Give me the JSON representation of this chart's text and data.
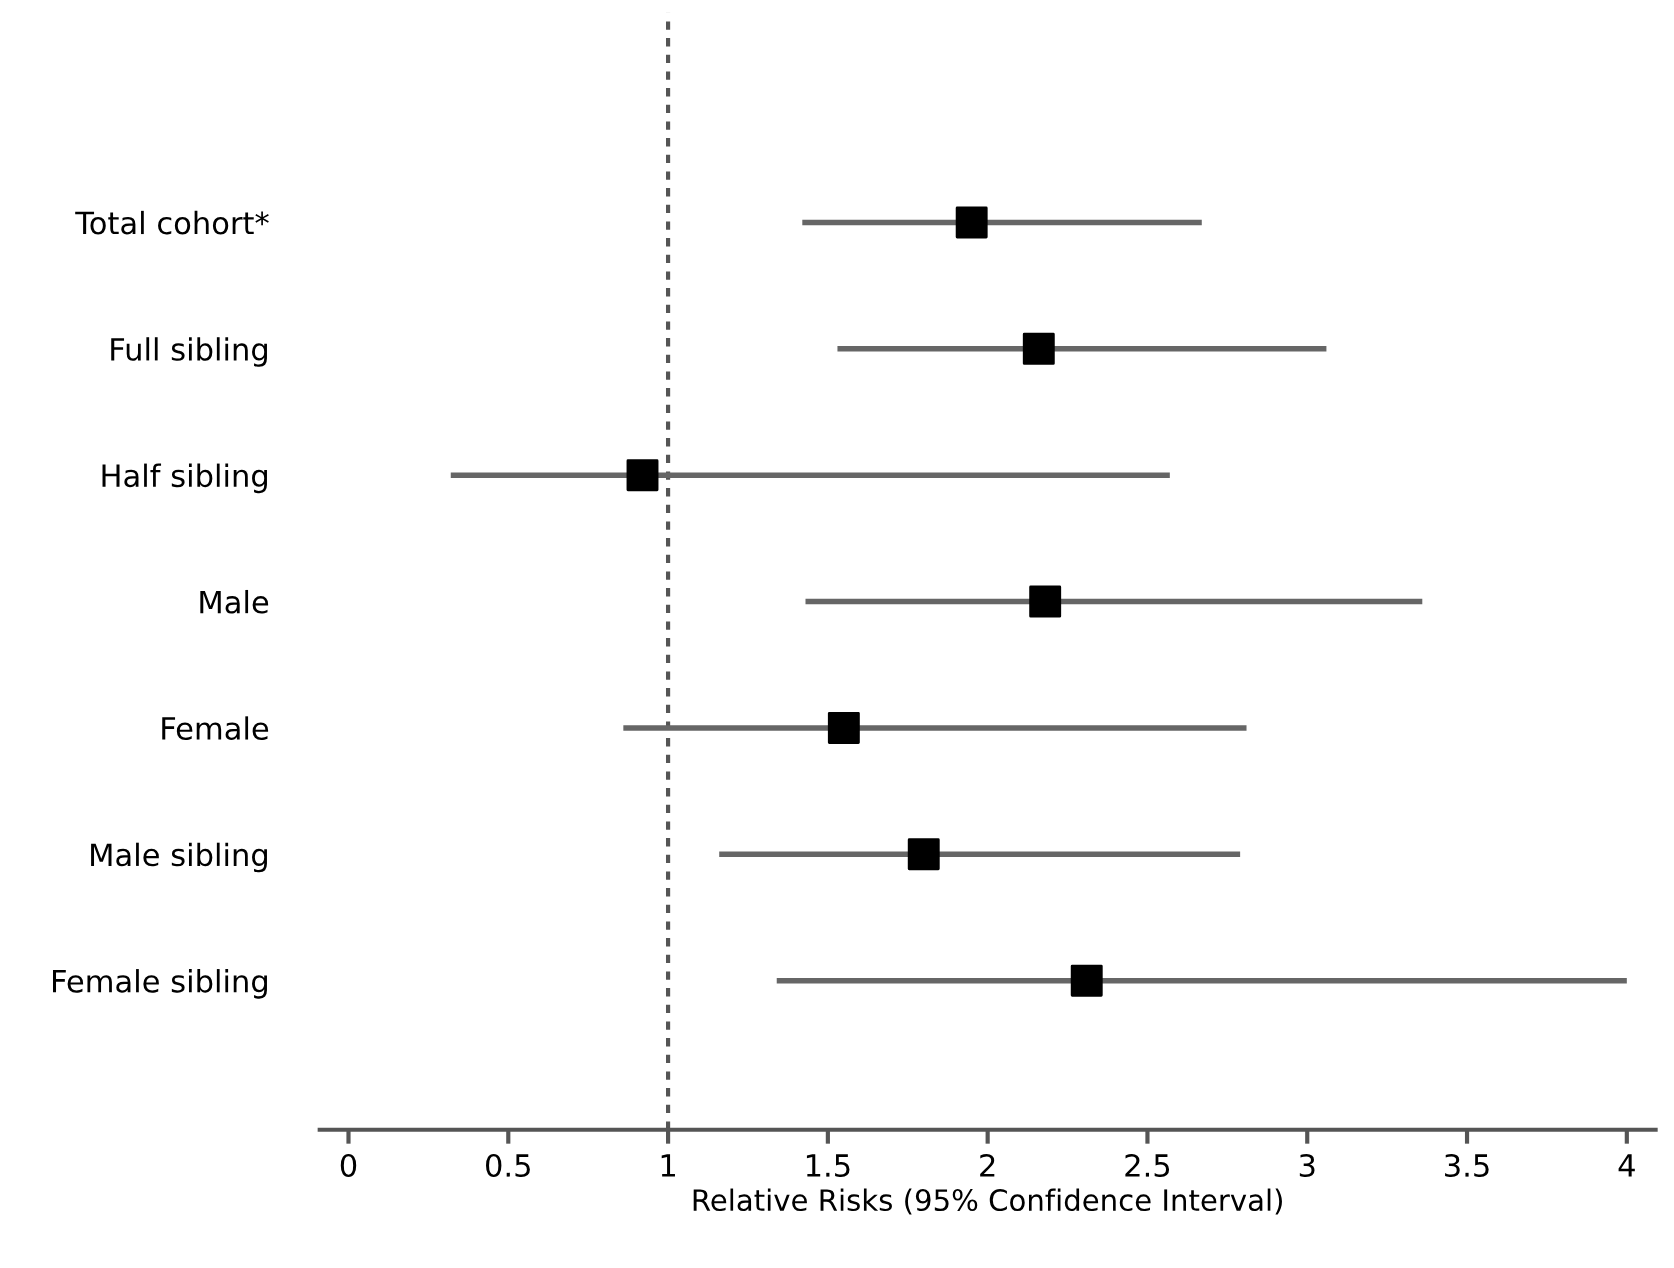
{
  "chart_data": {
    "type": "scatter",
    "orientation": "horizontal",
    "xlabel": "Relative Risks (95% Confidence Interval)",
    "categories": [
      "Total cohort*",
      "Full sibling",
      "Half sibling",
      "Male",
      "Female",
      "Male sibling",
      "Female sibling"
    ],
    "values": [
      1.95,
      2.16,
      0.92,
      2.18,
      1.55,
      1.8,
      2.31
    ],
    "errors": [
      [
        1.42,
        2.67
      ],
      [
        1.53,
        3.06
      ],
      [
        0.32,
        2.57
      ],
      [
        1.43,
        3.36
      ],
      [
        0.86,
        2.81
      ],
      [
        1.16,
        2.79
      ],
      [
        1.34,
        4.0
      ]
    ],
    "color": "#000000",
    "marker": "square",
    "xlim": [
      -0.09,
      4.09
    ],
    "xticks": [
      0,
      0.5,
      1,
      1.5,
      2,
      2.5,
      3,
      3.5,
      4
    ],
    "ref_lines": [
      {
        "axis": "x",
        "value": 1,
        "label": null,
        "line_style": "dotted",
        "color": "#555555"
      }
    ],
    "grid": false,
    "legend": false
  }
}
